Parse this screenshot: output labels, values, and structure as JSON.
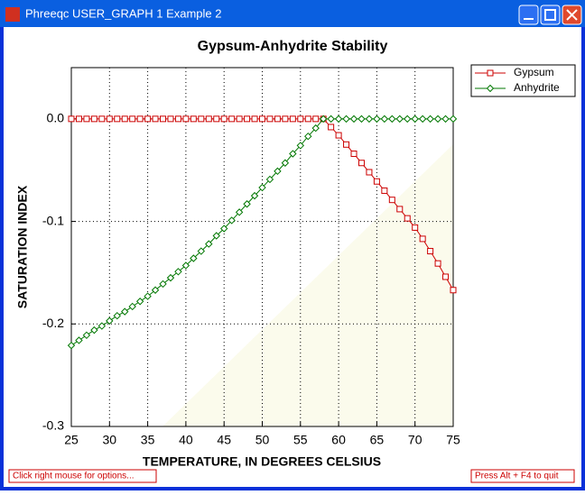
{
  "window": {
    "title": "Phreeqc USER_GRAPH 1 Example 2",
    "status_left": "Click right mouse for options...",
    "status_right": "Press Alt + F4 to quit"
  },
  "chart_data": {
    "type": "line",
    "title": "Gypsum-Anhydrite Stability",
    "x_label": "TEMPERATURE, IN DEGREES CELSIUS",
    "y_label": "SATURATION INDEX",
    "x": [
      25,
      26,
      27,
      28,
      29,
      30,
      31,
      32,
      33,
      34,
      35,
      36,
      37,
      38,
      39,
      40,
      41,
      42,
      43,
      44,
      45,
      46,
      47,
      48,
      49,
      50,
      51,
      52,
      53,
      54,
      55,
      56,
      57,
      58,
      59,
      60,
      61,
      62,
      63,
      64,
      65,
      66,
      67,
      68,
      69,
      70,
      71,
      72,
      73,
      74,
      75
    ],
    "series": [
      {
        "name": "Gypsum",
        "color": "#cc0000",
        "marker": "square",
        "values": [
          0,
          0,
          0,
          0,
          0,
          0,
          0,
          0,
          0,
          0,
          0,
          0,
          0,
          0,
          0,
          0,
          0,
          0,
          0,
          0,
          0,
          0,
          0,
          0,
          0,
          0,
          0,
          0,
          0,
          0,
          0,
          0,
          0,
          0,
          -0.008,
          -0.016,
          -0.025,
          -0.034,
          -0.043,
          -0.052,
          -0.061,
          -0.07,
          -0.079,
          -0.088,
          -0.097,
          -0.106,
          -0.117,
          -0.129,
          -0.141,
          -0.154,
          -0.167
        ]
      },
      {
        "name": "Anhydrite",
        "color": "#007700",
        "marker": "diamond",
        "values": [
          -0.221,
          -0.216,
          -0.211,
          -0.206,
          -0.202,
          -0.197,
          -0.192,
          -0.188,
          -0.183,
          -0.178,
          -0.173,
          -0.167,
          -0.161,
          -0.155,
          -0.149,
          -0.143,
          -0.136,
          -0.129,
          -0.122,
          -0.114,
          -0.107,
          -0.099,
          -0.091,
          -0.083,
          -0.075,
          -0.067,
          -0.059,
          -0.051,
          -0.043,
          -0.034,
          -0.026,
          -0.017,
          -0.009,
          0,
          0,
          0,
          0,
          0,
          0,
          0,
          0,
          0,
          0,
          0,
          0,
          0,
          0,
          0,
          0,
          0,
          0
        ]
      }
    ],
    "xlim": [
      25,
      75
    ],
    "xticks": [
      25,
      30,
      35,
      40,
      45,
      50,
      55,
      60,
      65,
      70,
      75
    ],
    "ylim": [
      -0.3,
      0.05
    ],
    "yticks": [
      -0.3,
      -0.2,
      -0.1,
      {
        "value": 0,
        "label": "0.0"
      }
    ],
    "grid": true,
    "legend": "right"
  }
}
